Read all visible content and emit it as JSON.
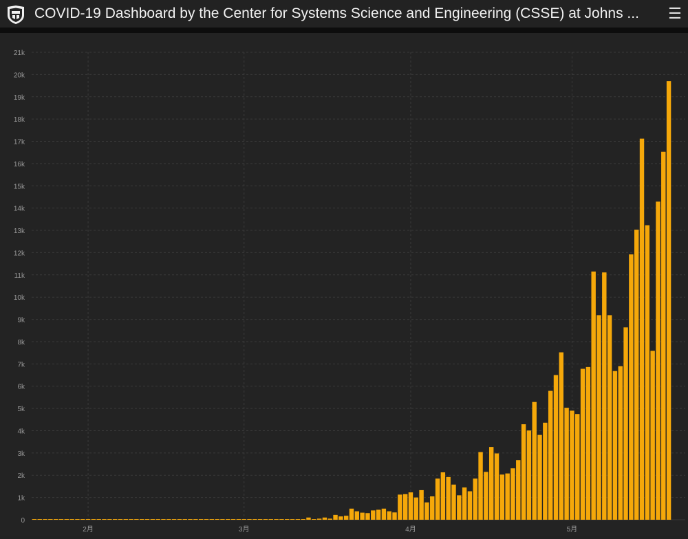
{
  "header": {
    "title": "COVID-19 Dashboard by the Center for Systems Science and Engineering (CSSE) at Johns ...",
    "logo_icon": "jhu-shield-icon",
    "menu_icon": "hamburger-menu-icon"
  },
  "colors": {
    "bar": "#f5a80a",
    "background": "#232323",
    "grid": "#3a3a3a",
    "axis_text": "#9a9a9a"
  },
  "chart_data": {
    "type": "bar",
    "grid": true,
    "ylim": [
      0,
      21000
    ],
    "yticks": [
      {
        "value": 0,
        "label": "0"
      },
      {
        "value": 1000,
        "label": "1k"
      },
      {
        "value": 2000,
        "label": "2k"
      },
      {
        "value": 3000,
        "label": "3k"
      },
      {
        "value": 4000,
        "label": "4k"
      },
      {
        "value": 5000,
        "label": "5k"
      },
      {
        "value": 6000,
        "label": "6k"
      },
      {
        "value": 7000,
        "label": "7k"
      },
      {
        "value": 8000,
        "label": "8k"
      },
      {
        "value": 9000,
        "label": "9k"
      },
      {
        "value": 10000,
        "label": "10k"
      },
      {
        "value": 11000,
        "label": "11k"
      },
      {
        "value": 12000,
        "label": "12k"
      },
      {
        "value": 13000,
        "label": "13k"
      },
      {
        "value": 14000,
        "label": "14k"
      },
      {
        "value": 15000,
        "label": "15k"
      },
      {
        "value": 16000,
        "label": "16k"
      },
      {
        "value": 17000,
        "label": "17k"
      },
      {
        "value": 18000,
        "label": "18k"
      },
      {
        "value": 19000,
        "label": "19k"
      },
      {
        "value": 20000,
        "label": "20k"
      },
      {
        "value": 21000,
        "label": "21k"
      }
    ],
    "xticks": [
      {
        "date": "2020-02-01",
        "label": "2月"
      },
      {
        "date": "2020-03-01",
        "label": "3月"
      },
      {
        "date": "2020-04-01",
        "label": "4月"
      },
      {
        "date": "2020-05-01",
        "label": "5月"
      }
    ],
    "x_start": "2020-01-22",
    "values": [
      0,
      0,
      0,
      0,
      0,
      0,
      0,
      0,
      0,
      0,
      0,
      0,
      0,
      0,
      0,
      0,
      0,
      0,
      0,
      0,
      0,
      0,
      0,
      0,
      0,
      0,
      0,
      0,
      0,
      0,
      0,
      0,
      0,
      0,
      0,
      0,
      0,
      0,
      0,
      0,
      0,
      0,
      0,
      0,
      0,
      0,
      0,
      0,
      0,
      0,
      20,
      100,
      20,
      50,
      100,
      50,
      220,
      150,
      180,
      500,
      380,
      320,
      300,
      420,
      450,
      500,
      380,
      330,
      1130,
      1150,
      1230,
      1000,
      1330,
      780,
      1050,
      1850,
      2130,
      1920,
      1580,
      1100,
      1450,
      1280,
      1850,
      3040,
      2150,
      3270,
      2980,
      2030,
      2080,
      2310,
      2680,
      4290,
      4010,
      5290,
      3810,
      4360,
      5790,
      6500,
      7520,
      5030,
      4900,
      4750,
      6780,
      6860,
      11150,
      9190,
      11110,
      9190,
      6680,
      6900,
      8640,
      11920,
      13030,
      17120,
      13230,
      7590,
      14290,
      16530,
      19700
    ]
  }
}
